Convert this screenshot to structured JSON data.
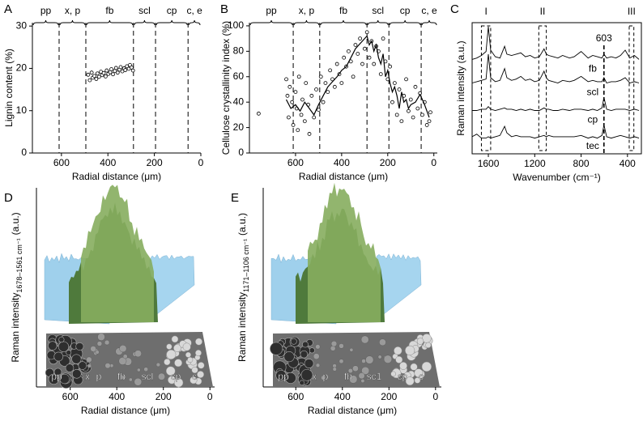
{
  "chart_data": [
    {
      "panel": "A",
      "type": "scatter",
      "y_label": "Lignin content (%)",
      "x_label": "Radial distance (μm)",
      "xlim": [
        725,
        0
      ],
      "xticks": [
        600,
        400,
        200,
        0
      ],
      "ylim": [
        0,
        30.8
      ],
      "yticks": [
        0,
        10,
        20,
        30
      ],
      "regions": [
        "pp",
        "x, p",
        "fb",
        "scl",
        "cp",
        "c, e"
      ],
      "region_bounds": [
        610,
        495,
        290,
        195,
        55
      ],
      "series": [
        {
          "kind": "scatter",
          "color": "#000000",
          "x": [
            485,
            478,
            470,
            465,
            458,
            450,
            445,
            438,
            430,
            425,
            418,
            410,
            405,
            398,
            390,
            385,
            378,
            370,
            365,
            358,
            350,
            345,
            338,
            330,
            325,
            318,
            310,
            305,
            298,
            292
          ],
          "y": [
            18.5,
            17.2,
            19.0,
            17.8,
            18.2,
            17.5,
            18.8,
            18.0,
            19.2,
            18.4,
            18.9,
            18.1,
            19.5,
            18.7,
            19.1,
            19.8,
            18.6,
            19.4,
            20.1,
            19.0,
            19.7,
            20.3,
            19.3,
            20.0,
            19.6,
            20.5,
            19.9,
            20.8,
            20.2,
            19.5
          ]
        }
      ]
    },
    {
      "panel": "B",
      "type": "scatter",
      "y_label": "Cellulose crystallinity index (%)",
      "x_label": "Radial distance (μm)",
      "xlim": [
        800,
        -15
      ],
      "xticks": [
        600,
        400,
        200,
        0
      ],
      "ylim": [
        0,
        102.5
      ],
      "yticks": [
        0,
        20,
        40,
        60,
        80,
        100
      ],
      "regions": [
        "pp",
        "x, p",
        "fb",
        "scl",
        "cp",
        "c, e"
      ],
      "region_bounds": [
        610,
        495,
        290,
        195,
        55
      ],
      "series": [
        {
          "kind": "scatter",
          "color": "#000000",
          "x": [
            760,
            640,
            635,
            630,
            625,
            615,
            610,
            600,
            595,
            590,
            585,
            575,
            570,
            560,
            555,
            545,
            540,
            530,
            520,
            510,
            500,
            490,
            480,
            470,
            460,
            450,
            440,
            430,
            420,
            410,
            400,
            390,
            380,
            370,
            360,
            350,
            340,
            330,
            320,
            310,
            300,
            290,
            280,
            270,
            260,
            250,
            240,
            230,
            220,
            210,
            200,
            190,
            180,
            170,
            160,
            150,
            140,
            130,
            120,
            110,
            100,
            90,
            80,
            70,
            60,
            50,
            40,
            30,
            20,
            15
          ],
          "y": [
            31,
            58,
            45,
            28,
            52,
            40,
            22,
            48,
            35,
            18,
            60,
            30,
            42,
            25,
            55,
            38,
            15,
            45,
            28,
            50,
            34,
            60,
            40,
            55,
            48,
            65,
            58,
            52,
            70,
            62,
            55,
            75,
            68,
            80,
            72,
            60,
            85,
            78,
            90,
            70,
            82,
            95,
            75,
            88,
            70,
            84,
            80,
            62,
            90,
            72,
            58,
            68,
            40,
            55,
            30,
            50,
            25,
            45,
            58,
            33,
            42,
            28,
            52,
            35,
            47,
            30,
            40,
            22,
            25,
            32
          ]
        },
        {
          "kind": "line",
          "color": "#000000",
          "x": [
            640,
            620,
            600,
            580,
            560,
            540,
            520,
            500,
            480,
            460,
            440,
            420,
            400,
            380,
            360,
            340,
            320,
            300,
            290,
            280,
            270,
            260,
            250,
            240,
            230,
            220,
            210,
            200,
            190,
            180,
            170,
            160,
            150,
            140,
            130,
            120,
            110,
            100,
            80,
            60,
            40,
            20
          ],
          "y": [
            42,
            35,
            38,
            33,
            40,
            35,
            30,
            38,
            45,
            52,
            56,
            60,
            65,
            68,
            75,
            82,
            86,
            90,
            92,
            85,
            88,
            80,
            85,
            75,
            70,
            78,
            60,
            65,
            55,
            48,
            52,
            45,
            35,
            48,
            40,
            42,
            35,
            38,
            40,
            46,
            38,
            28
          ]
        }
      ]
    },
    {
      "panel": "C",
      "type": "line",
      "y_label": "Raman intensity (a.u.)",
      "x_label": "Wavenumber (cm⁻¹)",
      "xlim": [
        1740,
        280
      ],
      "xticks": [
        1600,
        1200,
        800,
        400
      ],
      "ylim": [
        0,
        10
      ],
      "bands": [
        {
          "label": "I",
          "from": 1660,
          "to": 1580
        },
        {
          "label": "II",
          "from": 1165,
          "to": 1100
        },
        {
          "label": "III",
          "from": 385,
          "to": 345
        }
      ],
      "marker": 603,
      "x": [
        1740,
        1700,
        1660,
        1620,
        1600,
        1580,
        1540,
        1500,
        1460,
        1440,
        1400,
        1360,
        1320,
        1280,
        1240,
        1200,
        1160,
        1120,
        1100,
        1080,
        1040,
        1000,
        960,
        900,
        860,
        800,
        740,
        700,
        660,
        620,
        603,
        580,
        540,
        500,
        460,
        420,
        380,
        340,
        300
      ],
      "series": [
        {
          "name": "fb",
          "color": "#000000",
          "values": [
            7.2,
            7.3,
            7.5,
            7.8,
            9.7,
            7.9,
            7.4,
            7.3,
            8.2,
            7.6,
            7.5,
            7.6,
            7.7,
            7.4,
            7.5,
            7.3,
            7.4,
            8.0,
            7.6,
            7.5,
            7.4,
            7.3,
            7.5,
            7.3,
            7.4,
            7.8,
            7.3,
            7.5,
            7.4,
            7.3,
            7.6,
            7.3,
            7.4,
            7.3,
            7.5,
            7.9,
            7.3,
            7.5,
            7.2
          ]
        },
        {
          "name": "scl",
          "color": "#000000",
          "values": [
            5.4,
            5.5,
            5.6,
            5.7,
            7.6,
            5.8,
            5.5,
            5.6,
            6.5,
            5.8,
            5.6,
            5.7,
            5.9,
            5.6,
            5.7,
            5.5,
            5.6,
            6.3,
            5.8,
            5.6,
            5.5,
            5.4,
            5.6,
            5.5,
            5.6,
            5.9,
            5.5,
            5.6,
            5.5,
            5.5,
            5.8,
            5.4,
            5.5,
            5.5,
            5.6,
            5.8,
            5.4,
            5.5,
            5.4
          ]
        },
        {
          "name": "cp",
          "color": "#000000",
          "values": [
            3.3,
            3.3,
            3.4,
            3.4,
            3.6,
            3.4,
            3.3,
            3.4,
            3.5,
            3.4,
            3.4,
            3.3,
            3.4,
            3.3,
            3.4,
            3.3,
            3.3,
            3.5,
            3.4,
            3.4,
            3.3,
            3.3,
            3.4,
            3.3,
            3.4,
            3.4,
            3.3,
            3.4,
            3.3,
            3.5,
            4.3,
            3.4,
            3.3,
            3.4,
            3.4,
            3.4,
            3.3,
            3.4,
            3.3
          ]
        },
        {
          "name": "tec",
          "color": "#000000",
          "values": [
            1.3,
            1.5,
            1.2,
            1.2,
            1.3,
            1.2,
            1.3,
            1.4,
            2.1,
            1.6,
            1.3,
            1.4,
            1.3,
            1.3,
            1.3,
            1.2,
            1.3,
            1.4,
            1.3,
            1.4,
            1.3,
            1.3,
            1.3,
            1.3,
            1.3,
            1.4,
            1.2,
            1.3,
            1.2,
            1.4,
            2.2,
            1.3,
            1.2,
            1.3,
            1.4,
            1.3,
            1.2,
            1.3,
            1.2
          ]
        }
      ]
    },
    {
      "panel": "D",
      "type": "surface",
      "x_label": "Radial distance (μm)",
      "y_label": "Raman intensity",
      "y_label_subscript": "1678–1561 cm⁻¹",
      "y_label_unit": "(a.u.)",
      "xlim": [
        745,
        -20
      ],
      "xticks": [
        600,
        400,
        200,
        0
      ],
      "image_labels": [
        "pp",
        "x",
        "p",
        "fb",
        "scl",
        "cp",
        "c"
      ]
    },
    {
      "panel": "E",
      "type": "surface",
      "x_label": "Radial distance (μm)",
      "y_label": "Raman intensity",
      "y_label_subscript": "1171–1106 cm⁻¹",
      "y_label_unit": "(a.u.)",
      "xlim": [
        740,
        -25
      ],
      "xticks": [
        600,
        400,
        200,
        0
      ],
      "image_labels": [
        "pp",
        "x",
        "p",
        "fb",
        "sc1",
        "cp",
        "c"
      ]
    }
  ]
}
